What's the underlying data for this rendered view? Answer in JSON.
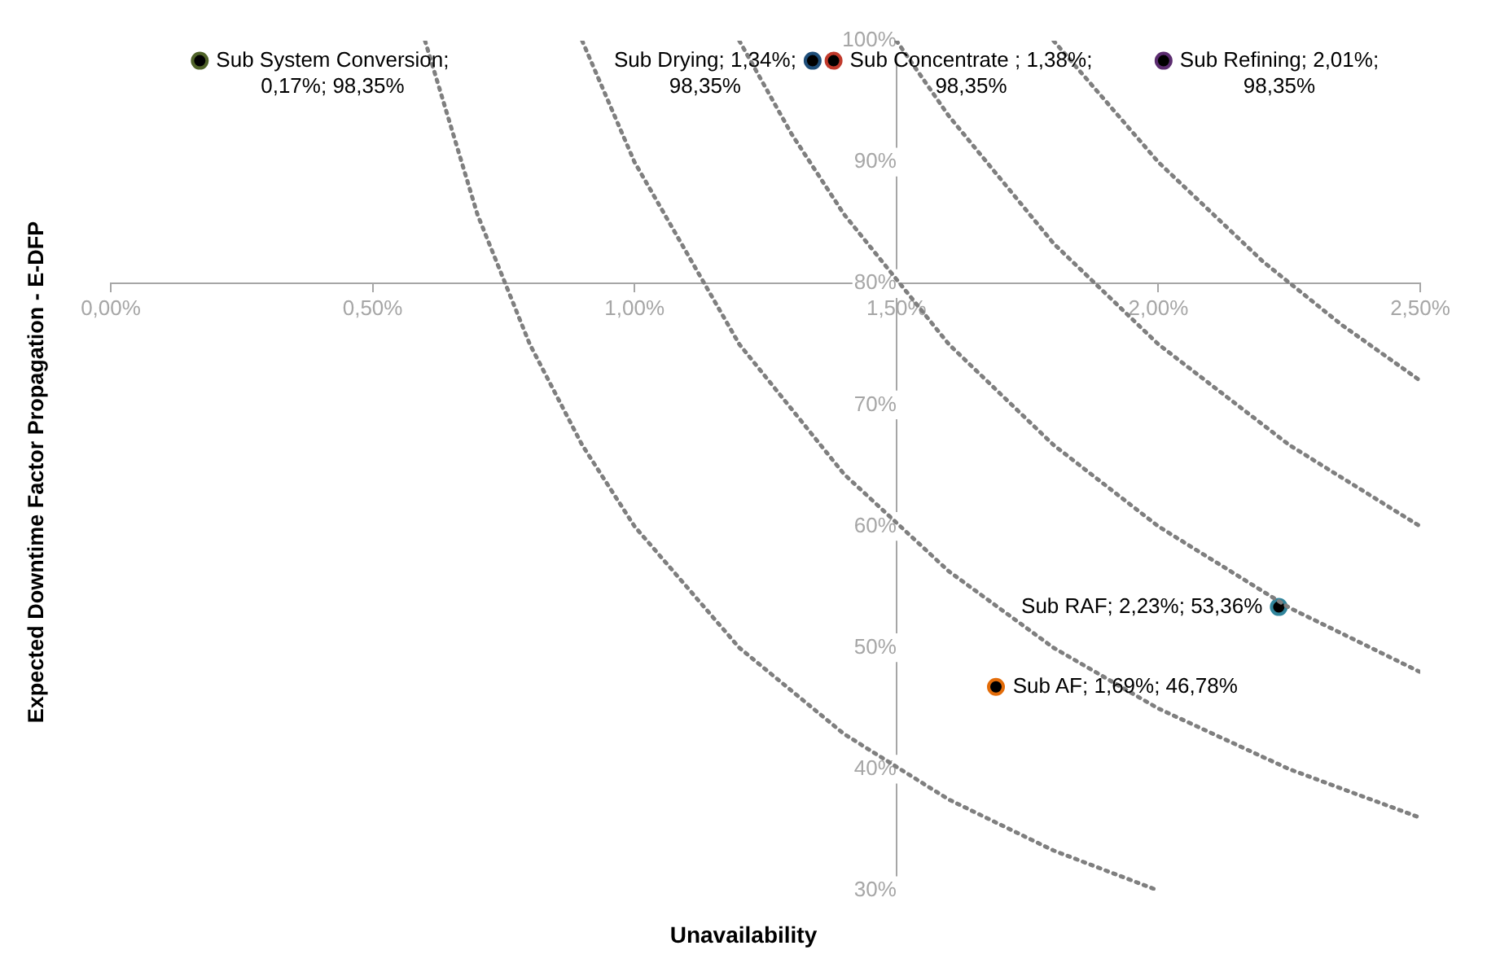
{
  "chart_data": {
    "type": "scatter",
    "xlabel": "Unavailability",
    "ylabel": "Expected Downtime Factor Propagation - E-DFP",
    "xlim": [
      0,
      2.5
    ],
    "xticks": [
      {
        "value": 0,
        "label": "0,00%"
      },
      {
        "value": 0.5,
        "label": "0,50%"
      },
      {
        "value": 1,
        "label": "1,00%"
      },
      {
        "value": 1.5,
        "label": "1,50%"
      },
      {
        "value": 2,
        "label": "2,00%"
      },
      {
        "value": 2.5,
        "label": "2,50%"
      }
    ],
    "ylim": [
      30,
      100
    ],
    "yticks": [
      {
        "value": 30,
        "label": "30%"
      },
      {
        "value": 40,
        "label": "40%"
      },
      {
        "value": 50,
        "label": "50%"
      },
      {
        "value": 60,
        "label": "60%"
      },
      {
        "value": 70,
        "label": "70%"
      },
      {
        "value": 80,
        "label": "80%"
      },
      {
        "value": 90,
        "label": "90%"
      },
      {
        "value": 100,
        "label": "100%"
      }
    ],
    "grid": false,
    "legend": false,
    "marker": "circle",
    "series": [
      {
        "type": "line",
        "color": "#7f7f7f",
        "line_style": "dotted",
        "marker": "none",
        "x": [
          0.6,
          0.7,
          0.8,
          0.9,
          1.0,
          1.2,
          1.4,
          1.6,
          1.8,
          2.0
        ],
        "values": [
          100,
          85.7,
          75,
          66.7,
          60,
          50,
          42.9,
          37.5,
          33.3,
          30
        ]
      },
      {
        "type": "line",
        "color": "#7f7f7f",
        "line_style": "dotted",
        "marker": "none",
        "x": [
          0.9,
          1.0,
          1.2,
          1.4,
          1.6,
          1.8,
          2.0,
          2.25,
          2.5
        ],
        "values": [
          100,
          90,
          75,
          64.3,
          56.3,
          50,
          45,
          40,
          36
        ]
      },
      {
        "type": "line",
        "color": "#7f7f7f",
        "line_style": "dotted",
        "marker": "none",
        "x": [
          1.2,
          1.3,
          1.4,
          1.6,
          1.8,
          2.0,
          2.25,
          2.5
        ],
        "values": [
          100,
          92.3,
          85.7,
          75,
          66.7,
          60,
          53.3,
          48
        ]
      },
      {
        "type": "line",
        "color": "#7f7f7f",
        "line_style": "dotted",
        "marker": "none",
        "x": [
          1.5,
          1.6,
          1.8,
          2.0,
          2.25,
          2.5
        ],
        "values": [
          100,
          93.8,
          83.3,
          75,
          66.7,
          60
        ]
      },
      {
        "type": "line",
        "color": "#7f7f7f",
        "line_style": "dotted",
        "marker": "none",
        "x": [
          1.8,
          2.0,
          2.2,
          2.35,
          2.5
        ],
        "values": [
          100,
          90,
          81.8,
          76.6,
          72
        ]
      },
      {
        "type": "scatter",
        "x": [
          0.17,
          1.34,
          1.38,
          2.01,
          2.23,
          1.69
        ],
        "values": [
          98.35,
          98.35,
          98.35,
          98.35,
          53.36,
          46.78
        ],
        "colors": [
          "#4f6228",
          "#1f4e79",
          "#c0392b",
          "#5b2c6f",
          "#31859c",
          "#e36c09"
        ]
      }
    ],
    "annotations": [
      {
        "text": "Sub System Conversion;\n0,17%; 98,35%",
        "x": 0.17,
        "y": 98.35
      },
      {
        "text": "Sub Drying; 1,34%;\n98,35%",
        "x": 1.34,
        "y": 98.35
      },
      {
        "text": "Sub Concentrate ; 1,38%;\n98,35%",
        "x": 1.38,
        "y": 98.35
      },
      {
        "text": "Sub Refining; 2,01%;\n98,35%",
        "x": 2.01,
        "y": 98.35
      },
      {
        "text": "Sub RAF; 2,23%; 53,36%",
        "x": 2.23,
        "y": 53.36
      },
      {
        "text": "Sub AF; 1,69%; 46,78%",
        "x": 1.69,
        "y": 46.78
      }
    ]
  }
}
